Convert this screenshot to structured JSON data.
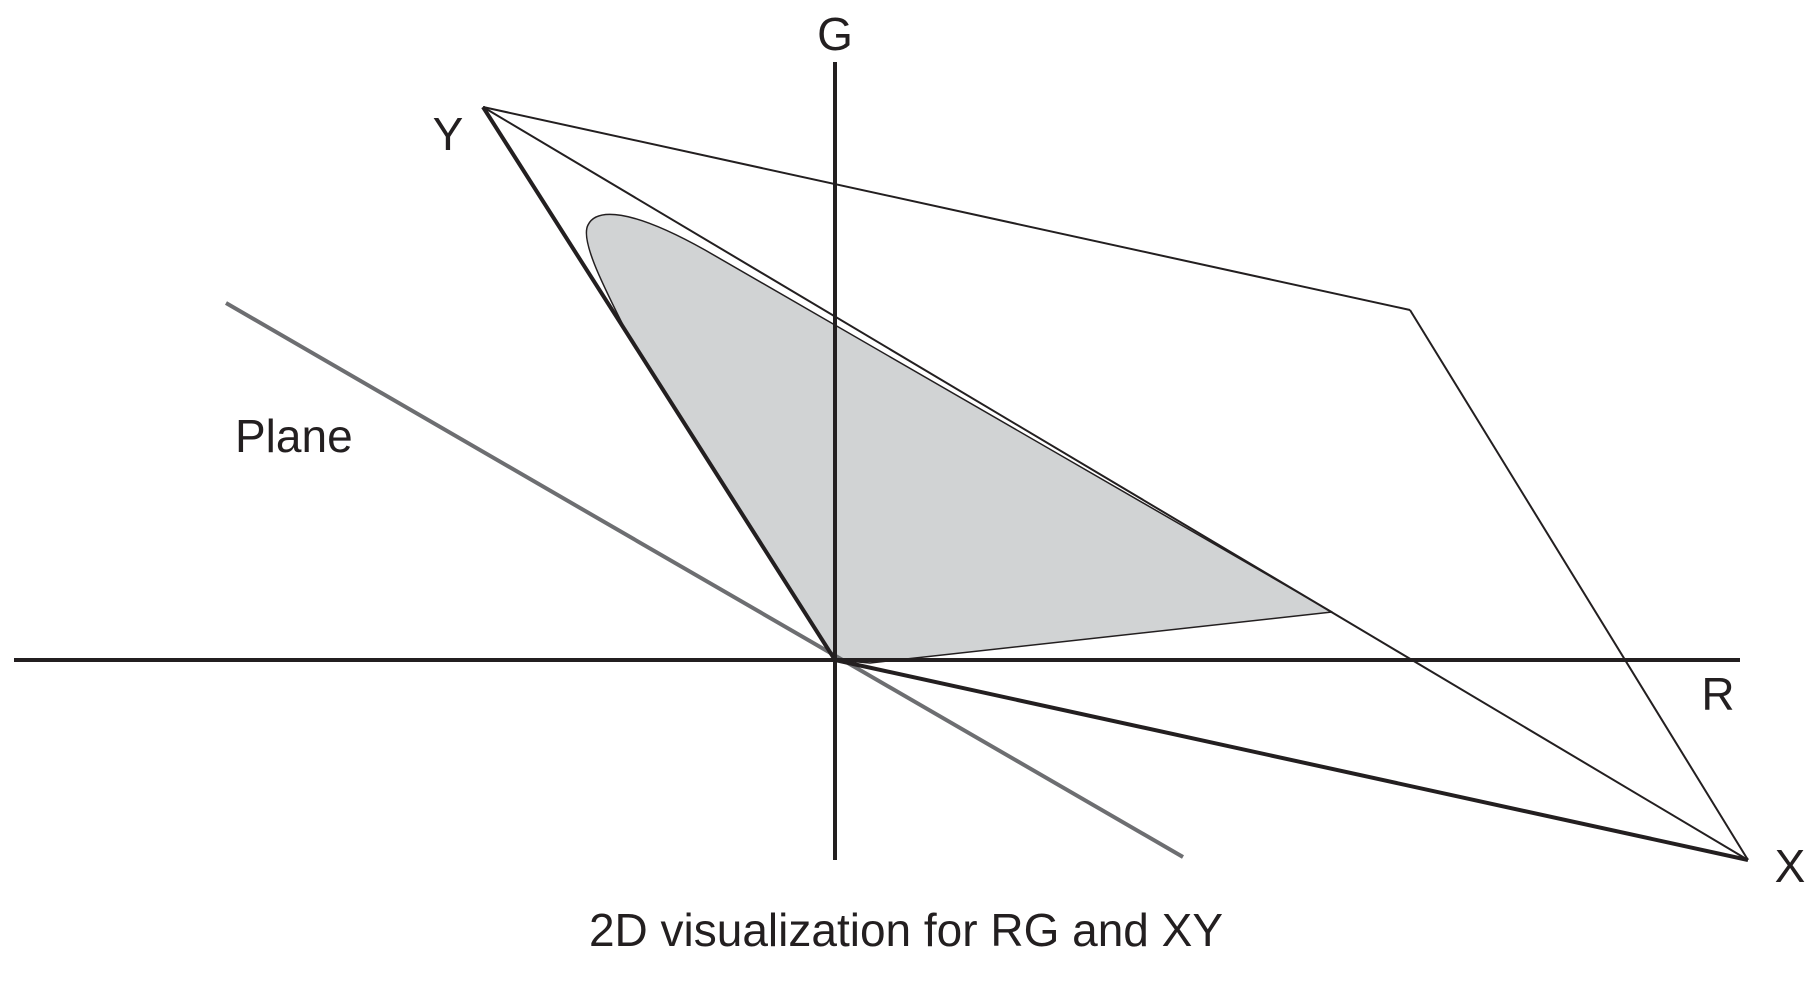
{
  "diagram": {
    "axis_labels": {
      "g": "G",
      "r": "R",
      "x": "X",
      "y": "Y"
    },
    "plane_label": "Plane",
    "caption": "2D visualization for RG and XY"
  },
  "colors": {
    "ink": "#231f20",
    "plane_line": "#6d6e71",
    "gamut_fill": "#d1d3d4"
  }
}
